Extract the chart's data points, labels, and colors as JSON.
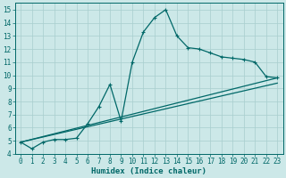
{
  "title": "",
  "xlabel": "Humidex (Indice chaleur)",
  "bg_color": "#cce8e8",
  "line_color": "#006868",
  "grid_color": "#a8cece",
  "xlim": [
    -0.5,
    23.5
  ],
  "ylim": [
    4,
    15.5
  ],
  "xticks": [
    0,
    1,
    2,
    3,
    4,
    5,
    6,
    7,
    8,
    9,
    10,
    11,
    12,
    13,
    14,
    15,
    16,
    17,
    18,
    19,
    20,
    21,
    22,
    23
  ],
  "yticks": [
    4,
    5,
    6,
    7,
    8,
    9,
    10,
    11,
    12,
    13,
    14,
    15
  ],
  "line1_x": [
    0,
    1,
    2,
    3,
    4,
    5,
    6,
    7,
    8,
    9,
    10,
    11,
    12,
    13,
    14,
    15,
    16,
    17,
    18,
    19,
    20,
    21,
    22,
    23
  ],
  "line1_y": [
    4.9,
    4.4,
    4.9,
    5.1,
    5.1,
    5.2,
    6.3,
    7.6,
    9.3,
    6.5,
    11.0,
    13.3,
    14.4,
    15.0,
    13.0,
    12.1,
    12.0,
    11.7,
    11.4,
    11.3,
    11.2,
    11.0,
    9.9,
    9.8
  ],
  "line2_x": [
    0,
    23
  ],
  "line2_y": [
    4.9,
    9.8
  ],
  "line3_x": [
    0,
    23
  ],
  "line3_y": [
    4.9,
    9.4
  ],
  "linewidth": 0.9,
  "markersize": 3.5,
  "tick_fontsize": 5.5,
  "label_fontsize": 6.5
}
